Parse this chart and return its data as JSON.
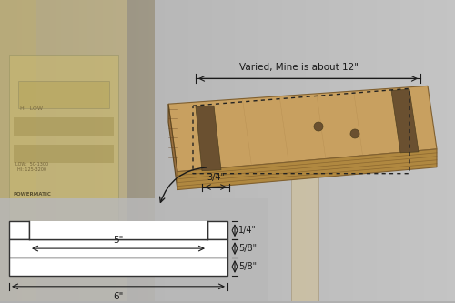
{
  "bg_color": "#b0b0b0",
  "diagram_panel_color": "#c0c0c0",
  "track_color": "#ffffff",
  "track_stroke": "#333333",
  "title_annotation": "Varied, Mine is about 12\"",
  "dim_3_4": "3/4\"",
  "dim_1_4": "1/4\"",
  "dim_5_8_top": "5/8\"",
  "dim_5_8_bot": "5/8\"",
  "dim_5": "5\"",
  "dim_6": "6\"",
  "font_size": 7.5,
  "arrow_color": "#1a1a1a",
  "lathe_color_light": "#d4c99a",
  "lathe_color_dark": "#8a7a50",
  "wood_top": "#c8a060",
  "wood_side": "#a07840",
  "wood_ply": "#8a6030"
}
